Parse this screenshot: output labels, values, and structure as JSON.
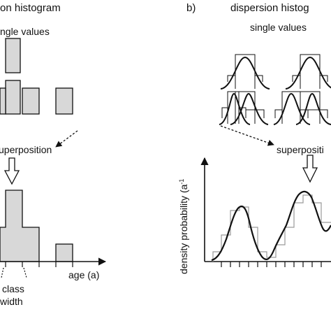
{
  "left_panel": {
    "title": "on histogram",
    "subtitle": "ngle values",
    "superposition": "uperposition",
    "axis_label": "age (a)",
    "class_width_line1": "class",
    "class_width_line2": "width"
  },
  "right_panel": {
    "panel_letter": "b)",
    "title": "dispersion histog",
    "subtitle": "single values",
    "superposition": "superpositi",
    "y_axis_label": "density probability (a",
    "y_axis_suffix": "-1"
  },
  "colors": {
    "bar_fill": "#d8d8d8",
    "stroke": "#111111",
    "step_gray": "#9a9a9a"
  }
}
